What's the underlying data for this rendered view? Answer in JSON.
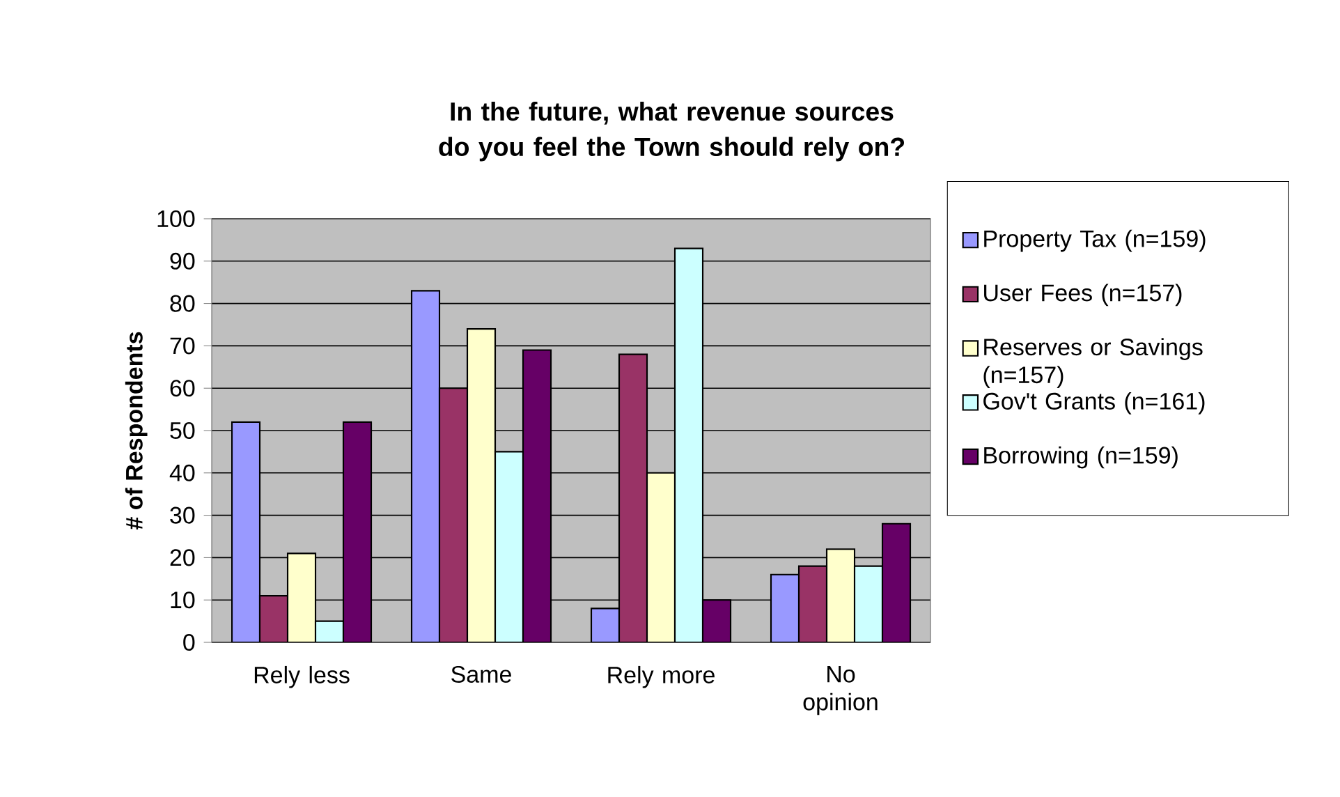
{
  "chart_data": {
    "type": "bar",
    "title": "In the future, what revenue sources do you feel the Town should rely on?",
    "ylabel": "# of Respondents",
    "categories": [
      "Rely less",
      "Same",
      "Rely more",
      "No opinion"
    ],
    "series": [
      {
        "name": "Property Tax (n=159)",
        "color": "#9999ff",
        "values": [
          52,
          83,
          8,
          16
        ]
      },
      {
        "name": "User Fees (n=157)",
        "color": "#993366",
        "values": [
          11,
          60,
          68,
          18
        ]
      },
      {
        "name": "Reserves or Savings (n=157)",
        "color": "#ffffcc",
        "values": [
          21,
          74,
          40,
          22
        ]
      },
      {
        "name": "Gov't Grants (n=161)",
        "color": "#ccffff",
        "values": [
          5,
          45,
          93,
          18
        ]
      },
      {
        "name": "Borrowing (n=159)",
        "color": "#660066",
        "values": [
          52,
          69,
          10,
          28
        ]
      }
    ],
    "ylim": [
      0,
      100
    ],
    "yticks": [
      0,
      10,
      20,
      30,
      40,
      50,
      60,
      70,
      80,
      90,
      100
    ],
    "grid": "y",
    "legend": "right"
  }
}
